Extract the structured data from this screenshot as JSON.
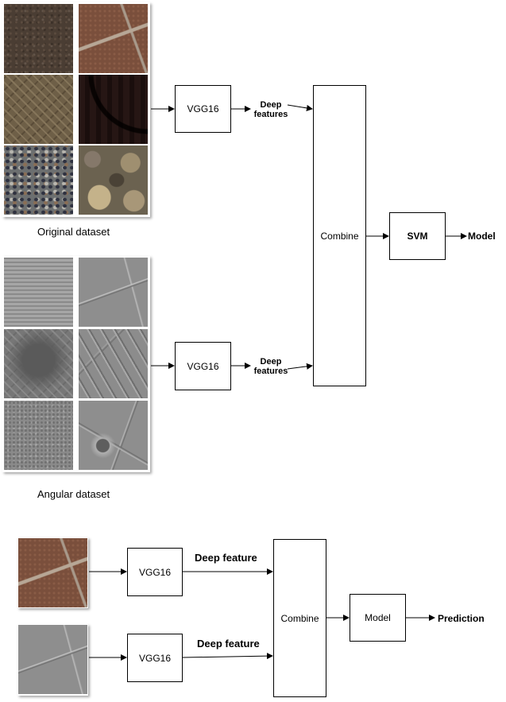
{
  "labels": {
    "original_dataset": "Original dataset",
    "angular_dataset": "Angular dataset",
    "vgg16": "VGG16",
    "deep": "Deep",
    "features": "features",
    "combine": "Combine",
    "svm": "SVM",
    "model_output": "Model",
    "deep_feature": "Deep feature",
    "model_box": "Model",
    "prediction": "Prediction"
  }
}
